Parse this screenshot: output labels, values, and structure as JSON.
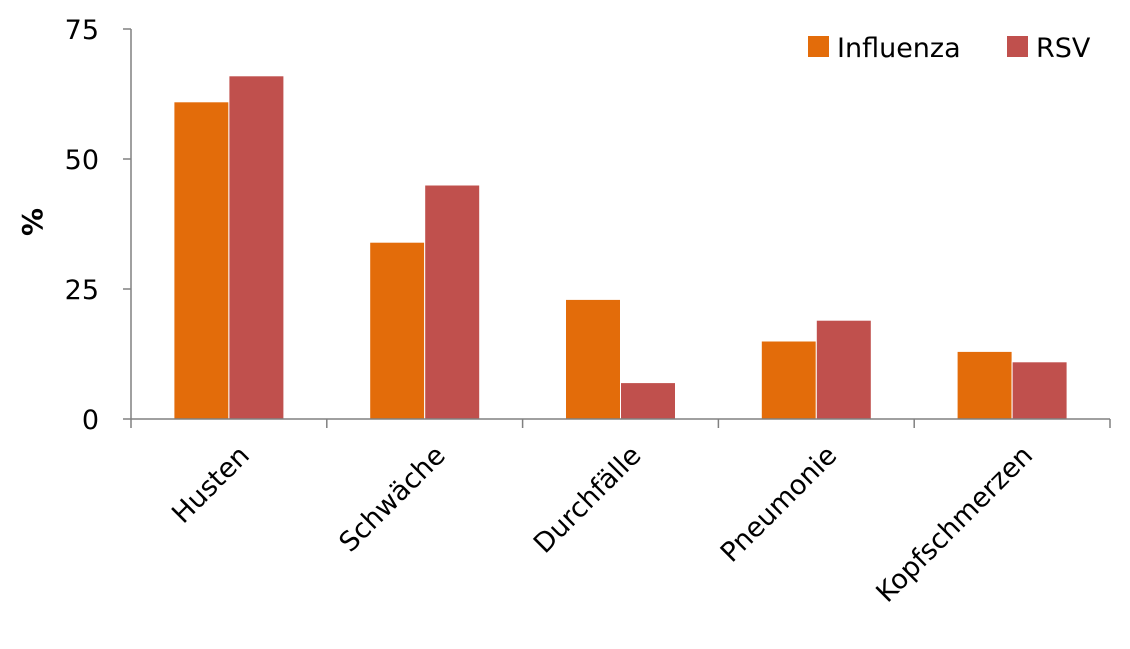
{
  "chart_data": {
    "type": "bar",
    "categories": [
      "Husten",
      "Schwäche",
      "Durchfälle",
      "Pneumonie",
      "Kopfschmerzen"
    ],
    "series": [
      {
        "name": "Influenza",
        "values": [
          61,
          34,
          23,
          15,
          13
        ],
        "color": "#E36C0A"
      },
      {
        "name": "RSV",
        "values": [
          66,
          45,
          7,
          19,
          11
        ],
        "color": "#C0504D"
      }
    ],
    "ylabel": "%",
    "xlabel": "",
    "ylim": [
      0,
      75
    ],
    "yticks": [
      "0",
      "25",
      "50",
      "75"
    ],
    "grid": false,
    "legend_position": "top-right"
  }
}
